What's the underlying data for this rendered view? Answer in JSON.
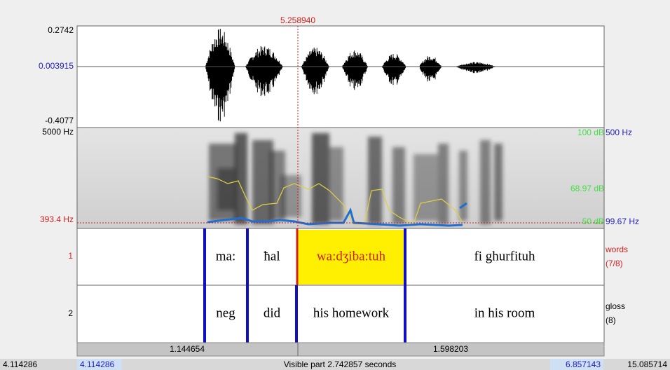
{
  "cursor_time": "5.258940",
  "waveform": {
    "max_label": "0.2742",
    "zero_label": "0.003915",
    "min_label": "-0.4077"
  },
  "spectrogram": {
    "top_freq": "5000 Hz",
    "cursor_freq": "393.4 Hz",
    "right_labels": {
      "db_top": "100 dB",
      "pitch_top": "500 Hz",
      "db_mid": "68.97 dB",
      "db_bottom": "50 dB",
      "pitch_bottom": "99.67 Hz"
    }
  },
  "tiers": [
    {
      "number": "1",
      "name": "words",
      "count": "(7/8)",
      "intervals": [
        "ma:",
        "ħal",
        "wa:dʒiba:tuh",
        "fi ghurfituh"
      ]
    },
    {
      "number": "2",
      "name": "gloss",
      "count": "(8)",
      "intervals": [
        "neg",
        "did",
        "his homework",
        "in his room"
      ]
    }
  ],
  "selection_bar": {
    "left": "1.144654",
    "right": "1.598203"
  },
  "bottom_bar": {
    "total_start": "4.114286",
    "visible_start": "4.114286",
    "visible_part": "Visible part 2.742857 seconds",
    "visible_end": "6.857143",
    "total_end": "15.085714"
  }
}
